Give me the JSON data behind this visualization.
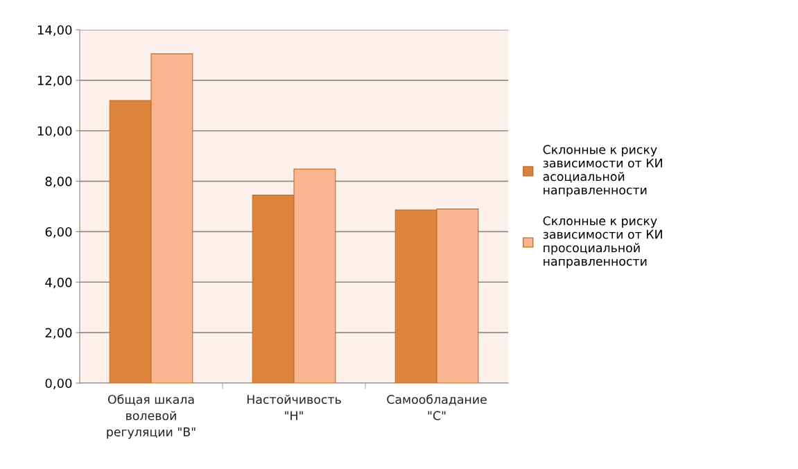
{
  "chart_data": {
    "type": "bar",
    "categories": [
      "Общая шкала волевой регуляции \"В\"",
      "Настойчивость \"Н\"",
      "Самообладание \"С\""
    ],
    "series": [
      {
        "name": "Склонные к риску зависимости от КИ асоциальной направленности",
        "color": "#db843d",
        "values": [
          11.2,
          7.45,
          6.86
        ]
      },
      {
        "name": "Склонные к риску зависимости от КИ просоциальной направленности",
        "color": "#f8b58f",
        "values": [
          13.05,
          8.48,
          6.9
        ]
      }
    ],
    "ylim": [
      0,
      14
    ],
    "yticks": [
      {
        "value": 0,
        "label": "0,00"
      },
      {
        "value": 2,
        "label": "2,00"
      },
      {
        "value": 4,
        "label": "4,00"
      },
      {
        "value": 6,
        "label": "6,00"
      },
      {
        "value": 8,
        "label": "8,00"
      },
      {
        "value": 10,
        "label": "10,00"
      },
      {
        "value": 12,
        "label": "12,00"
      },
      {
        "value": 14,
        "label": "14,00"
      }
    ],
    "grid": "y",
    "legend": "right"
  }
}
